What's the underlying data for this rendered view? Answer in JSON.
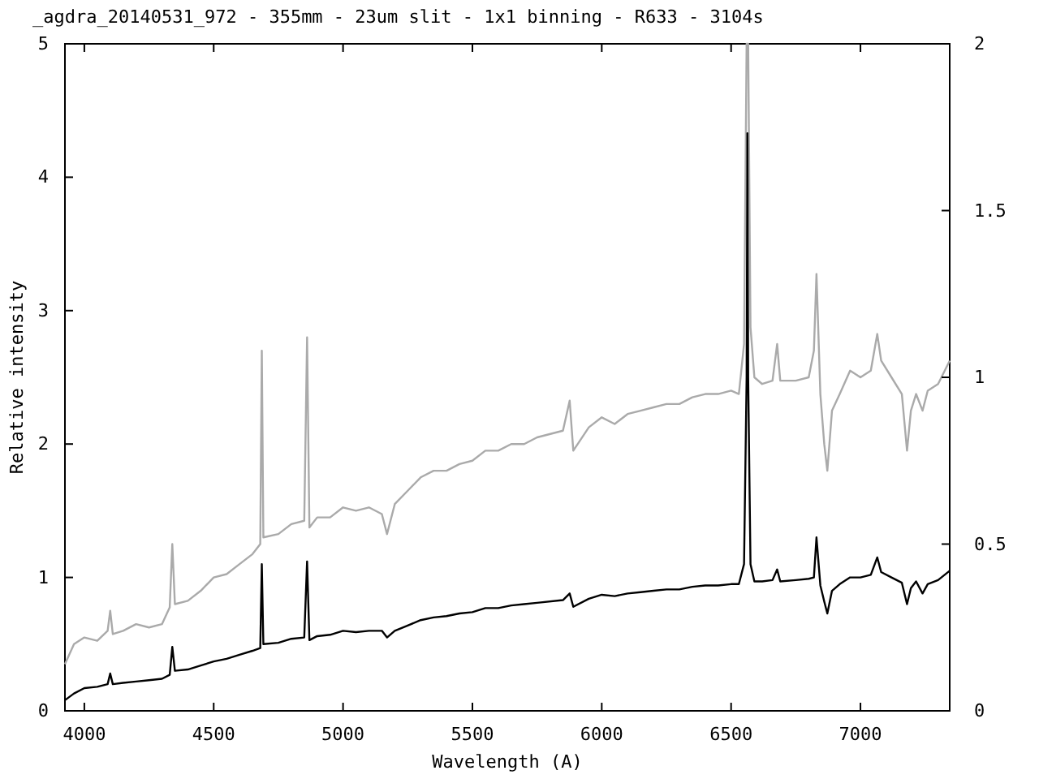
{
  "chart_data": {
    "type": "line",
    "title": "_agdra_20140531_972  - 355mm - 23um slit - 1x1 binning - R633 - 3104s",
    "xlabel": "Wavelength (A)",
    "ylabel": "Relative intensity",
    "xlim": [
      3925,
      7345
    ],
    "xticks": [
      4000,
      4500,
      5000,
      5500,
      6000,
      6500,
      7000
    ],
    "ylim": [
      0,
      5
    ],
    "yticks": [
      0,
      1,
      2,
      3,
      4,
      5
    ],
    "y2lim": [
      0,
      2
    ],
    "y2ticks": [
      0,
      0.5,
      1,
      1.5,
      2
    ],
    "grid": false,
    "series": [
      {
        "color": "#aaaaaa",
        "axis": "y2",
        "x": [
          3925,
          3960,
          4000,
          4050,
          4090,
          4100,
          4110,
          4150,
          4200,
          4250,
          4300,
          4330,
          4340,
          4350,
          4400,
          4450,
          4500,
          4550,
          4600,
          4650,
          4680,
          4686,
          4692,
          4750,
          4800,
          4850,
          4861,
          4870,
          4900,
          4950,
          5000,
          5050,
          5100,
          5150,
          5170,
          5200,
          5250,
          5300,
          5350,
          5400,
          5450,
          5500,
          5550,
          5600,
          5650,
          5700,
          5750,
          5850,
          5876,
          5890,
          5950,
          6000,
          6050,
          6100,
          6150,
          6200,
          6250,
          6300,
          6350,
          6400,
          6450,
          6500,
          6530,
          6550,
          6560,
          6566,
          6575,
          6590,
          6620,
          6660,
          6678,
          6690,
          6750,
          6800,
          6820,
          6830,
          6845,
          6860,
          6872,
          6890,
          6920,
          6960,
          7000,
          7040,
          7065,
          7080,
          7120,
          7160,
          7180,
          7195,
          7215,
          7240,
          7260,
          7300,
          7345
        ],
        "values": [
          0.14,
          0.2,
          0.22,
          0.21,
          0.24,
          0.3,
          0.23,
          0.24,
          0.26,
          0.25,
          0.26,
          0.31,
          0.5,
          0.32,
          0.33,
          0.36,
          0.4,
          0.41,
          0.44,
          0.47,
          0.5,
          1.08,
          0.52,
          0.53,
          0.56,
          0.57,
          1.12,
          0.55,
          0.58,
          0.58,
          0.61,
          0.6,
          0.61,
          0.59,
          0.53,
          0.62,
          0.66,
          0.7,
          0.72,
          0.72,
          0.74,
          0.75,
          0.78,
          0.78,
          0.8,
          0.8,
          0.82,
          0.84,
          0.93,
          0.78,
          0.85,
          0.88,
          0.86,
          0.89,
          0.9,
          0.91,
          0.92,
          0.92,
          0.94,
          0.95,
          0.95,
          0.96,
          0.95,
          1.1,
          2,
          2,
          1.15,
          1.0,
          0.98,
          0.99,
          1.1,
          0.99,
          0.99,
          1.0,
          1.08,
          1.31,
          0.95,
          0.8,
          0.72,
          0.9,
          0.95,
          1.02,
          1.0,
          1.02,
          1.13,
          1.05,
          1.0,
          0.95,
          0.78,
          0.9,
          0.95,
          0.9,
          0.96,
          0.98,
          1.05
        ]
      },
      {
        "color": "#000000",
        "x": [
          3925,
          3960,
          4000,
          4050,
          4090,
          4100,
          4110,
          4150,
          4200,
          4250,
          4300,
          4330,
          4340,
          4350,
          4400,
          4450,
          4500,
          4550,
          4600,
          4650,
          4680,
          4686,
          4692,
          4750,
          4800,
          4850,
          4861,
          4870,
          4900,
          4950,
          5000,
          5050,
          5100,
          5150,
          5170,
          5200,
          5250,
          5300,
          5350,
          5400,
          5450,
          5500,
          5550,
          5600,
          5650,
          5700,
          5750,
          5850,
          5876,
          5890,
          5950,
          6000,
          6050,
          6100,
          6150,
          6200,
          6250,
          6300,
          6350,
          6400,
          6450,
          6500,
          6530,
          6550,
          6560,
          6563,
          6566,
          6575,
          6590,
          6620,
          6660,
          6678,
          6690,
          6750,
          6800,
          6820,
          6830,
          6845,
          6860,
          6872,
          6890,
          6920,
          6960,
          7000,
          7040,
          7065,
          7080,
          7120,
          7160,
          7180,
          7195,
          7215,
          7240,
          7260,
          7300,
          7345
        ],
        "values": [
          0.08,
          0.13,
          0.17,
          0.18,
          0.2,
          0.28,
          0.2,
          0.21,
          0.22,
          0.23,
          0.24,
          0.27,
          0.48,
          0.3,
          0.31,
          0.34,
          0.37,
          0.39,
          0.42,
          0.45,
          0.47,
          1.1,
          0.5,
          0.51,
          0.54,
          0.55,
          1.12,
          0.53,
          0.56,
          0.57,
          0.6,
          0.59,
          0.6,
          0.6,
          0.55,
          0.6,
          0.64,
          0.68,
          0.7,
          0.71,
          0.73,
          0.74,
          0.77,
          0.77,
          0.79,
          0.8,
          0.81,
          0.83,
          0.88,
          0.78,
          0.84,
          0.87,
          0.86,
          0.88,
          0.89,
          0.9,
          0.91,
          0.91,
          0.93,
          0.94,
          0.94,
          0.95,
          0.95,
          1.1,
          2.5,
          4.33,
          2.5,
          1.1,
          0.97,
          0.97,
          0.98,
          1.06,
          0.97,
          0.98,
          0.99,
          1.0,
          1.3,
          0.94,
          0.82,
          0.73,
          0.9,
          0.95,
          1.0,
          1.0,
          1.02,
          1.15,
          1.04,
          1.0,
          0.96,
          0.8,
          0.92,
          0.97,
          0.88,
          0.95,
          0.98,
          1.05
        ]
      }
    ]
  }
}
